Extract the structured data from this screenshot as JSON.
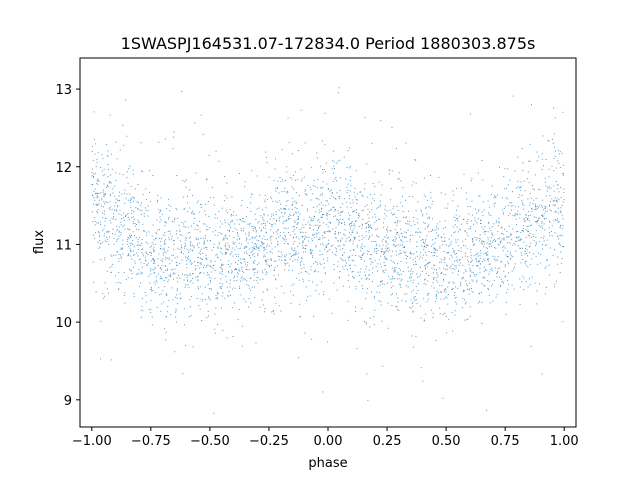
{
  "chart_data": {
    "type": "scatter",
    "title": "1SWASPJ164531.07-172834.0 Period 1880303.875s",
    "xlabel": "phase",
    "ylabel": "flux",
    "xlim": [
      -1.05,
      1.05
    ],
    "ylim": [
      8.65,
      13.4
    ],
    "xticks": [
      -1.0,
      -0.75,
      -0.5,
      -0.25,
      0.0,
      0.25,
      0.5,
      0.75,
      1.0
    ],
    "xtick_labels": [
      "−1.00",
      "−0.75",
      "−0.50",
      "−0.25",
      "0.00",
      "0.25",
      "0.50",
      "0.75",
      "1.00"
    ],
    "yticks": [
      9,
      10,
      11,
      12,
      13
    ],
    "ytick_labels": [
      "9",
      "10",
      "11",
      "12",
      "13"
    ],
    "grid": false,
    "marker_color": "#1f77b4",
    "profile_description": "phase-folded light curve repeated over two cycles; flux mean ~11.0 with scatter ~0.4, brighter near phase ±1.0, ~0.0 and ~0.9, fainter near phase ±0.5",
    "series": [
      {
        "name": "",
        "profile": {
          "phase": [
            -1.0,
            -0.9,
            -0.8,
            -0.7,
            -0.6,
            -0.5,
            -0.4,
            -0.3,
            -0.2,
            -0.1,
            0.0,
            0.1,
            0.2,
            0.3,
            0.4,
            0.5,
            0.6,
            0.7,
            0.8,
            0.9,
            1.0
          ],
          "mean_flux": [
            11.6,
            11.25,
            11.1,
            10.85,
            10.9,
            10.8,
            10.85,
            10.95,
            11.2,
            11.05,
            11.3,
            11.2,
            11.0,
            10.95,
            10.85,
            10.75,
            10.9,
            11.05,
            11.2,
            11.35,
            11.5
          ],
          "scatter": 0.4
        }
      }
    ]
  }
}
